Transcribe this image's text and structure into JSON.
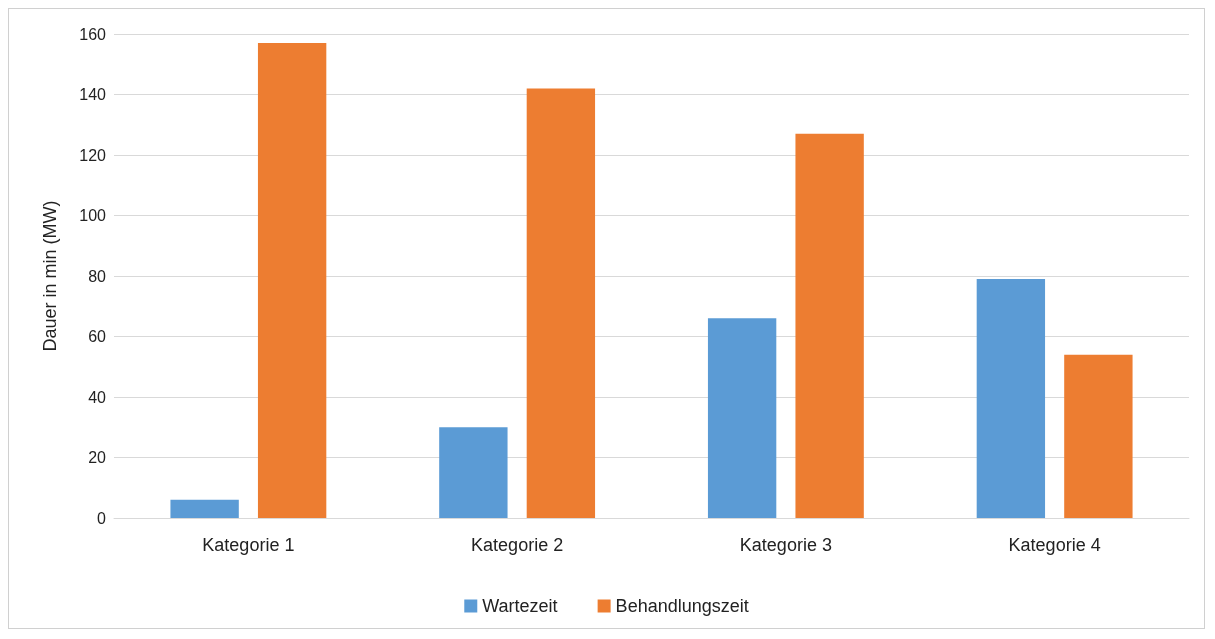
{
  "chart_data": {
    "type": "bar",
    "ylabel": "Dauer in min (MW)",
    "categories": [
      "Kategorie 1",
      "Kategorie 2",
      "Kategorie 3",
      "Kategorie 4"
    ],
    "series": [
      {
        "name": "Wartezeit",
        "color": "#5b9bd5",
        "values": [
          6,
          30,
          66,
          79
        ]
      },
      {
        "name": "Behandlungszeit",
        "color": "#ed7d31",
        "values": [
          157,
          142,
          127,
          54
        ]
      }
    ],
    "ylim": [
      0,
      160
    ],
    "yticks": [
      0,
      20,
      40,
      60,
      80,
      100,
      120,
      140,
      160
    ],
    "grid": "y",
    "legend": "bottom"
  }
}
